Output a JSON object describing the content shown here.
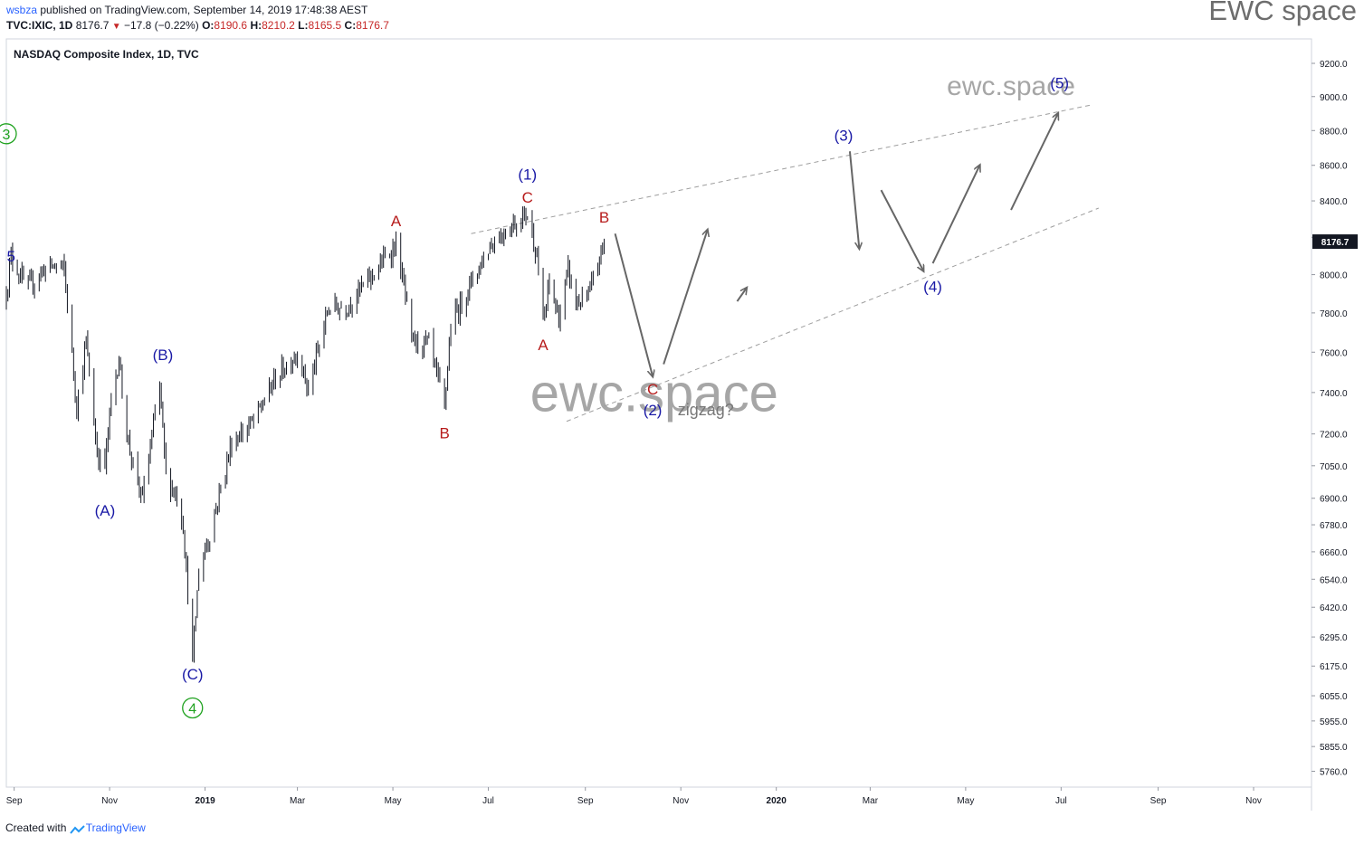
{
  "header": {
    "user": "wsbza",
    "published": "published on TradingView.com, September 14, 2019 17:48:38 AEST",
    "symbol": "TVC:IXIC, 1D",
    "last": "8176.7",
    "change": "−17.8 (−0.22%)",
    "open_label": "O:",
    "open": "8190.6",
    "high_label": "H:",
    "high": "8210.2",
    "low_label": "L:",
    "low": "8165.5",
    "close_label": "C:",
    "close": "8176.7"
  },
  "brand": "EWC space",
  "footer": {
    "created": "Created with",
    "tv": "TradingView"
  },
  "colors": {
    "up": "#131722",
    "price_tag": "#131722",
    "wave_blue": "#1a1aa6",
    "wave_red": "#b71c1c",
    "wave_green": "#1fa21f",
    "arrow": "#666666",
    "channel": "#9e9e9e"
  },
  "chart_data": {
    "type": "line",
    "title": "NASDAQ Composite Index, 1D, TVC",
    "last_price_label": "8176.7",
    "y_scale": "log",
    "ylim": [
      5700,
      9350
    ],
    "yticks": [
      9200.0,
      9000.0,
      8800.0,
      8600.0,
      8400.0,
      8200.0,
      8000.0,
      7800.0,
      7600.0,
      7400.0,
      7200.0,
      7050.0,
      6900.0,
      6780.0,
      6660.0,
      6540.0,
      6420.0,
      6295.0,
      6175.0,
      6055.0,
      5955.0,
      5855.0,
      5760.0
    ],
    "ytick_labels": [
      "9200.0",
      "9000.0",
      "8800.0",
      "8600.0",
      "8400.0",
      "8200.0",
      "8000.0",
      "7800.0",
      "7600.0",
      "7400.0",
      "7200.0",
      "7050.0",
      "6900.0",
      "6780.0",
      "6660.0",
      "6540.0",
      "6420.0",
      "6295.0",
      "6175.0",
      "6055.0",
      "5955.0",
      "5855.0",
      "5760.0"
    ],
    "xlim": [
      "2018-08-27",
      "2020-12-08"
    ],
    "xtick_labels": [
      {
        "d": "2018-09-01",
        "t": "Sep"
      },
      {
        "d": "2018-11-01",
        "t": "Nov"
      },
      {
        "d": "2019-01-01",
        "t": "2019"
      },
      {
        "d": "2019-03-01",
        "t": "Mar"
      },
      {
        "d": "2019-05-01",
        "t": "May"
      },
      {
        "d": "2019-07-01",
        "t": "Jul"
      },
      {
        "d": "2019-09-01",
        "t": "Sep"
      },
      {
        "d": "2019-11-01",
        "t": "Nov"
      },
      {
        "d": "2020-01-01",
        "t": "2020"
      },
      {
        "d": "2020-03-01",
        "t": "Mar"
      },
      {
        "d": "2020-05-01",
        "t": "May"
      },
      {
        "d": "2020-07-01",
        "t": "Jul"
      },
      {
        "d": "2020-09-01",
        "t": "Sep"
      },
      {
        "d": "2020-11-01",
        "t": "Nov"
      }
    ],
    "price_path": [
      [
        "2018-08-27",
        7900
      ],
      [
        "2018-08-30",
        8105
      ],
      [
        "2018-09-05",
        7995
      ],
      [
        "2018-09-10",
        7930
      ],
      [
        "2018-09-20",
        8030
      ],
      [
        "2018-09-28",
        8050
      ],
      [
        "2018-10-03",
        8025
      ],
      [
        "2018-10-11",
        7330
      ],
      [
        "2018-10-17",
        7650
      ],
      [
        "2018-10-24",
        7110
      ],
      [
        "2018-10-29",
        7050
      ],
      [
        "2018-11-02",
        7360
      ],
      [
        "2018-11-07",
        7570
      ],
      [
        "2018-11-12",
        7200
      ],
      [
        "2018-11-20",
        6910
      ],
      [
        "2018-11-23",
        6940
      ],
      [
        "2018-12-03",
        7440
      ],
      [
        "2018-12-07",
        7000
      ],
      [
        "2018-12-14",
        6910
      ],
      [
        "2018-12-18",
        6780
      ],
      [
        "2018-12-24",
        6190
      ],
      [
        "2018-12-28",
        6580
      ],
      [
        "2019-01-04",
        6740
      ],
      [
        "2019-01-18",
        7160
      ],
      [
        "2019-02-01",
        7260
      ],
      [
        "2019-02-15",
        7470
      ],
      [
        "2019-03-01",
        7600
      ],
      [
        "2019-03-08",
        7410
      ],
      [
        "2019-03-21",
        7830
      ],
      [
        "2019-04-01",
        7830
      ],
      [
        "2019-04-18",
        8000
      ],
      [
        "2019-05-03",
        8160
      ],
      [
        "2019-05-08",
        7940
      ],
      [
        "2019-05-13",
        7650
      ],
      [
        "2019-05-24",
        7640
      ],
      [
        "2019-06-03",
        7330
      ],
      [
        "2019-06-07",
        7740
      ],
      [
        "2019-06-20",
        7960
      ],
      [
        "2019-07-03",
        8170
      ],
      [
        "2019-07-15",
        8260
      ],
      [
        "2019-07-26",
        8330
      ],
      [
        "2019-08-01",
        8110
      ],
      [
        "2019-08-05",
        7730
      ],
      [
        "2019-08-09",
        7960
      ],
      [
        "2019-08-15",
        7770
      ],
      [
        "2019-08-21",
        8020
      ],
      [
        "2019-08-26",
        7850
      ],
      [
        "2019-09-03",
        7880
      ],
      [
        "2019-09-13",
        8177
      ]
    ],
    "annotations": [
      {
        "text": "3",
        "d": "2018-08-27",
        "v": 8750,
        "color": "green",
        "circle": true
      },
      {
        "text": "5",
        "d": "2018-08-30",
        "v": 8070,
        "color": "blue"
      },
      {
        "text": "(A)",
        "d": "2018-10-29",
        "v": 6820,
        "color": "blue"
      },
      {
        "text": "(B)",
        "d": "2018-12-05",
        "v": 7560,
        "color": "blue"
      },
      {
        "text": "(C)",
        "d": "2018-12-24",
        "v": 6120,
        "color": "blue"
      },
      {
        "text": "4",
        "d": "2018-12-24",
        "v": 5985,
        "color": "green",
        "circle": true
      },
      {
        "text": "A",
        "d": "2019-05-03",
        "v": 8260,
        "color": "red"
      },
      {
        "text": "B",
        "d": "2019-06-03",
        "v": 7180,
        "color": "red"
      },
      {
        "text": "(1)",
        "d": "2019-07-26",
        "v": 8520,
        "color": "blue"
      },
      {
        "text": "C",
        "d": "2019-07-26",
        "v": 8390,
        "color": "red"
      },
      {
        "text": "A",
        "d": "2019-08-05",
        "v": 7610,
        "color": "red"
      },
      {
        "text": "B",
        "d": "2019-09-13",
        "v": 8280,
        "color": "red"
      },
      {
        "text": "C",
        "d": "2019-10-14",
        "v": 7390,
        "color": "red"
      },
      {
        "text": "(2)",
        "d": "2019-10-14",
        "v": 7290,
        "color": "blue"
      },
      {
        "text": "zigzag?",
        "d": "2019-10-30",
        "v": 7290,
        "color": "gray"
      },
      {
        "text": "(3)",
        "d": "2020-02-13",
        "v": 8740,
        "color": "blue"
      },
      {
        "text": "(4)",
        "d": "2020-04-10",
        "v": 7910,
        "color": "blue"
      },
      {
        "text": "(5)",
        "d": "2020-06-30",
        "v": 9050,
        "color": "blue"
      }
    ],
    "projection": [
      [
        "2019-09-20",
        8220
      ],
      [
        "2019-10-14",
        7480
      ],
      [
        "2019-10-21",
        7540
      ],
      [
        "2019-11-18",
        8240
      ],
      [
        "2019-12-07",
        7860
      ],
      [
        "2019-12-13",
        7930
      ],
      [
        "2020-02-17",
        8680
      ],
      [
        "2020-02-23",
        8140
      ],
      [
        "2020-03-08",
        8460
      ],
      [
        "2020-04-04",
        8020
      ],
      [
        "2020-04-10",
        8060
      ],
      [
        "2020-05-10",
        8600
      ],
      [
        "2020-05-30",
        8350
      ],
      [
        "2020-06-29",
        8900
      ]
    ],
    "projection_breaks": [
      1,
      3,
      5,
      7,
      9,
      11
    ],
    "channel_upper": [
      [
        "2019-06-20",
        8220
      ],
      [
        "2020-07-20",
        8950
      ]
    ],
    "channel_lower": [
      [
        "2019-08-20",
        7260
      ],
      [
        "2020-07-25",
        8360
      ]
    ],
    "watermarks": [
      {
        "text": "ewc.space",
        "d": "2020-05-30",
        "v": 9010,
        "size": 30
      },
      {
        "text": "ewc.space",
        "d": "2019-10-15",
        "v": 7310,
        "size": 58
      }
    ]
  }
}
